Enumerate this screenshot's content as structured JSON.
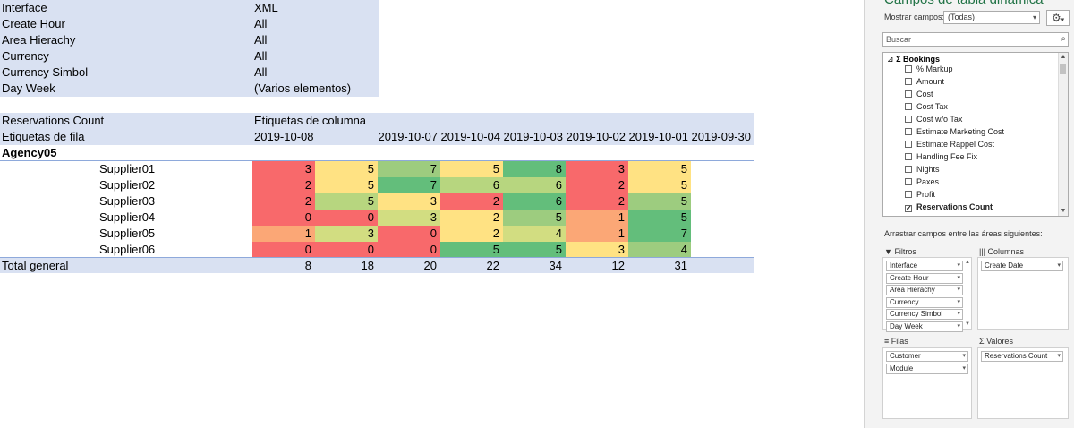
{
  "filters": [
    {
      "label": "Interface",
      "value": "XML"
    },
    {
      "label": "Create Hour",
      "value": "All"
    },
    {
      "label": "Area Hierachy",
      "value": "All"
    },
    {
      "label": "Currency",
      "value": "All"
    },
    {
      "label": "Currency Simbol",
      "value": "All"
    },
    {
      "label": "Day Week",
      "value": "(Varios elementos)"
    }
  ],
  "pivot": {
    "value_field": "Reservations Count",
    "column_labels": "Etiquetas de columna",
    "row_labels": "Etiquetas de fila",
    "dates": [
      "2019-10-08",
      "2019-10-07",
      "2019-10-04",
      "2019-10-03",
      "2019-10-02",
      "2019-10-01",
      "2019-09-30"
    ],
    "agency": "Agency05",
    "rows": [
      {
        "label": "Supplier01",
        "values": [
          "3",
          "5",
          "7",
          "5",
          "8",
          "3",
          "5"
        ],
        "colors": [
          "#f8696b",
          "#ffe283",
          "#9dcc7f",
          "#ffe283",
          "#63be7b",
          "#f8696b",
          "#ffe283"
        ]
      },
      {
        "label": "Supplier02",
        "values": [
          "2",
          "5",
          "7",
          "6",
          "6",
          "2",
          "5"
        ],
        "colors": [
          "#f8696b",
          "#ffe283",
          "#63be7b",
          "#b7d67f",
          "#b7d67f",
          "#f8696b",
          "#ffe283"
        ]
      },
      {
        "label": "Supplier03",
        "values": [
          "2",
          "5",
          "3",
          "2",
          "6",
          "2",
          "5"
        ],
        "colors": [
          "#f8696b",
          "#b7d67f",
          "#ffe283",
          "#f8696b",
          "#63be7b",
          "#f8696b",
          "#9dcc7f"
        ]
      },
      {
        "label": "Supplier04",
        "values": [
          "0",
          "0",
          "3",
          "2",
          "5",
          "1",
          "5"
        ],
        "colors": [
          "#f8696b",
          "#f8696b",
          "#d2dd81",
          "#ffe283",
          "#9dcc7f",
          "#fba776",
          "#63be7b"
        ]
      },
      {
        "label": "Supplier05",
        "values": [
          "1",
          "3",
          "0",
          "2",
          "4",
          "1",
          "7"
        ],
        "colors": [
          "#fba776",
          "#d2dd81",
          "#f8696b",
          "#ffe283",
          "#d2dd81",
          "#fba776",
          "#63be7b"
        ]
      },
      {
        "label": "Supplier06",
        "values": [
          "0",
          "0",
          "0",
          "5",
          "5",
          "3",
          "4"
        ],
        "colors": [
          "#f8696b",
          "#f8696b",
          "#f8696b",
          "#63be7b",
          "#63be7b",
          "#ffe283",
          "#9dcc7f"
        ]
      }
    ],
    "total_label": "Total general",
    "totals": [
      "8",
      "18",
      "20",
      "22",
      "34",
      "12",
      "31"
    ]
  },
  "panel": {
    "title": "Campos de tabla dinámica",
    "show_fields_label": "Mostrar campos:",
    "show_fields_value": "(Todas)",
    "gear_icon": "gear-icon",
    "search_placeholder": "Buscar",
    "group_name": "Bookings",
    "fields": [
      {
        "name": "% Markup",
        "checked": false
      },
      {
        "name": "Amount",
        "checked": false
      },
      {
        "name": "Cost",
        "checked": false
      },
      {
        "name": "Cost Tax",
        "checked": false
      },
      {
        "name": "Cost w/o Tax",
        "checked": false
      },
      {
        "name": "Estimate Marketing Cost",
        "checked": false
      },
      {
        "name": "Estimate Rappel Cost",
        "checked": false
      },
      {
        "name": "Handling Fee Fix",
        "checked": false
      },
      {
        "name": "Nights",
        "checked": false
      },
      {
        "name": "Paxes",
        "checked": false
      },
      {
        "name": "Profit",
        "checked": false
      },
      {
        "name": "Reservations Count",
        "checked": true
      }
    ],
    "drag_label": "Arrastrar campos entre las áreas siguientes:",
    "areas": {
      "filters_title": "Filtros",
      "filters": [
        "Interface",
        "Create Hour",
        "Area Hierachy",
        "Currency",
        "Currency Simbol",
        "Day Week"
      ],
      "columns_title": "Columnas",
      "columns": [
        "Create Date"
      ],
      "rows_title": "Filas",
      "rows": [
        "Customer",
        "Module"
      ],
      "values_title": "Valores",
      "values": [
        "Reservations Count"
      ]
    }
  }
}
